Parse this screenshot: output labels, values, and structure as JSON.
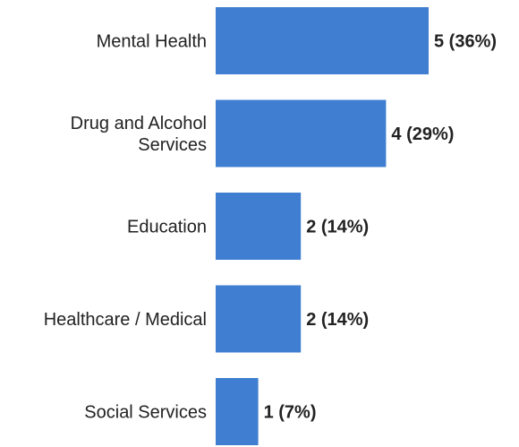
{
  "chart_data": {
    "type": "bar",
    "orientation": "horizontal",
    "categories": [
      [
        "Mental Health"
      ],
      [
        "Drug and Alcohol",
        "Services"
      ],
      [
        "Education"
      ],
      [
        "Healthcare / Medical"
      ],
      [
        "Social Services"
      ]
    ],
    "values": [
      5,
      4,
      2,
      2,
      1
    ],
    "value_labels": [
      "5 (36%)",
      "4 (29%)",
      "2 (14%)",
      "2 (14%)",
      "1 (7%)"
    ],
    "bar_color": "#3f7ed0",
    "xlim": [
      0,
      5
    ],
    "grid": false,
    "legend": "none"
  }
}
